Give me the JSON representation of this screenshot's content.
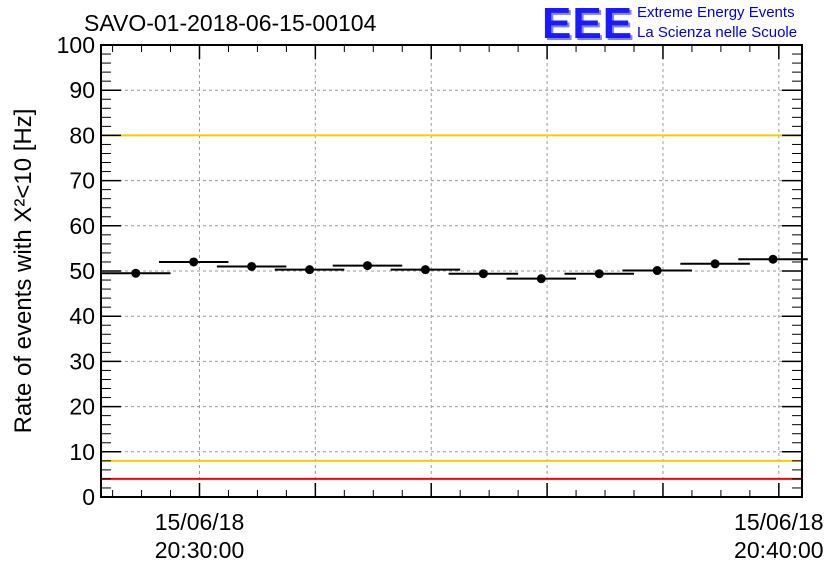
{
  "header": {
    "title": "SAVO-01-2018-06-15-00104",
    "logo_text": "EEE",
    "logo_line1": "Extreme Energy Events",
    "logo_line2": "La Scienza nelle Scuole"
  },
  "chart_data": {
    "type": "scatter",
    "title": "SAVO-01-2018-06-15-00104",
    "xlabel": "",
    "ylabel": "Rate of events with X²<10 [Hz]",
    "ylim": [
      0,
      100
    ],
    "yticks": [
      "0",
      "10",
      "20",
      "30",
      "40",
      "50",
      "60",
      "70",
      "80",
      "90",
      "100"
    ],
    "xlim": [
      -1.7,
      10.4
    ],
    "xtick_labels": [
      {
        "x": 0,
        "line1": "15/06/18",
        "line2": "20:30:00"
      },
      {
        "x": 10,
        "line1": "15/06/18",
        "line2": "20:40:00"
      }
    ],
    "grid": true,
    "points": [
      {
        "x": -1.1,
        "y": 49.5
      },
      {
        "x": -0.1,
        "y": 52.0
      },
      {
        "x": 0.9,
        "y": 51.0
      },
      {
        "x": 1.9,
        "y": 50.3
      },
      {
        "x": 2.9,
        "y": 51.2
      },
      {
        "x": 3.9,
        "y": 50.3
      },
      {
        "x": 4.9,
        "y": 49.4
      },
      {
        "x": 5.9,
        "y": 48.3
      },
      {
        "x": 6.9,
        "y": 49.4
      },
      {
        "x": 7.9,
        "y": 50.1
      },
      {
        "x": 8.9,
        "y": 51.6
      },
      {
        "x": 9.9,
        "y": 52.6
      }
    ],
    "bin_width": 1.2,
    "thresholds": [
      {
        "y": 100,
        "color": "#ff0000"
      },
      {
        "y": 80,
        "color": "#f0d000"
      },
      {
        "y": 8,
        "color": "#f0d000"
      },
      {
        "y": 4,
        "color": "#ff0000"
      }
    ]
  }
}
